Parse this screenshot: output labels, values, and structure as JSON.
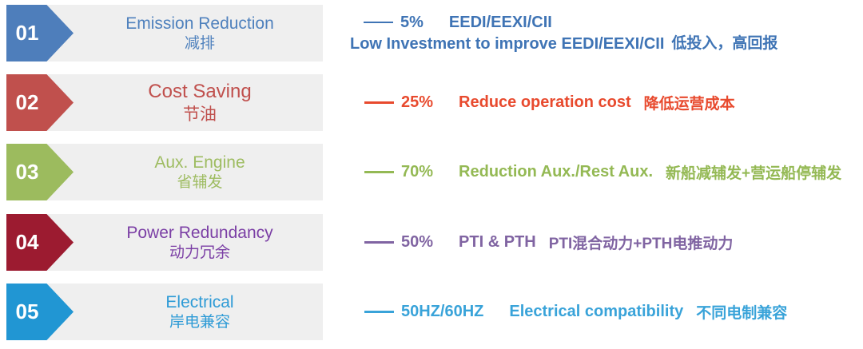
{
  "figure": {
    "background_color": "#ffffff",
    "bar_color": "#efefef",
    "number_text_color": "#ffffff"
  },
  "rows": [
    {
      "number": "01",
      "title_en": "Emission Reduction",
      "title_zh": "减排",
      "percent": "5%",
      "label_en": "EEDI/EEXI/CII",
      "sub_en": "Low Investment to improve EEDI/EEXI/CII",
      "sub_zh": "低投入，高回报",
      "badge_color": "#4e7ebb",
      "title_color": "#4f81bd",
      "accent_color": "#3f74b5"
    },
    {
      "number": "02",
      "title_en": "Cost Saving",
      "title_zh": "节油",
      "percent": "25%",
      "label_en": "Reduce operation cost",
      "label_zh": "降低运营成本",
      "badge_color": "#c0504d",
      "title_color": "#c0504d",
      "accent_color": "#e84a2e"
    },
    {
      "number": "03",
      "title_en": "Aux. Engine",
      "title_zh": "省辅发",
      "percent": "70%",
      "label_en": "Reduction Aux./Rest Aux.",
      "label_zh": "新船减辅发+营运船停辅发",
      "badge_color": "#9cbb5e",
      "title_color": "#9ebc61",
      "accent_color": "#94b954"
    },
    {
      "number": "04",
      "title_en": "Power Redundancy",
      "title_zh": "动力冗余",
      "percent": "50%",
      "label_en": "PTI & PTH",
      "label_zh": "PTI混合动力+PTH电推动力",
      "badge_color": "#9c1b30",
      "title_color": "#7b3fa5",
      "accent_color": "#8064a2"
    },
    {
      "number": "05",
      "title_en": "Electrical",
      "title_zh": "岸电兼容",
      "percent": "50HZ/60HZ",
      "label_en": "Electrical compatibility",
      "label_zh": "不同电制兼容",
      "badge_color": "#2196d3",
      "title_color": "#2e9bd6",
      "accent_color": "#39a3d9"
    }
  ]
}
